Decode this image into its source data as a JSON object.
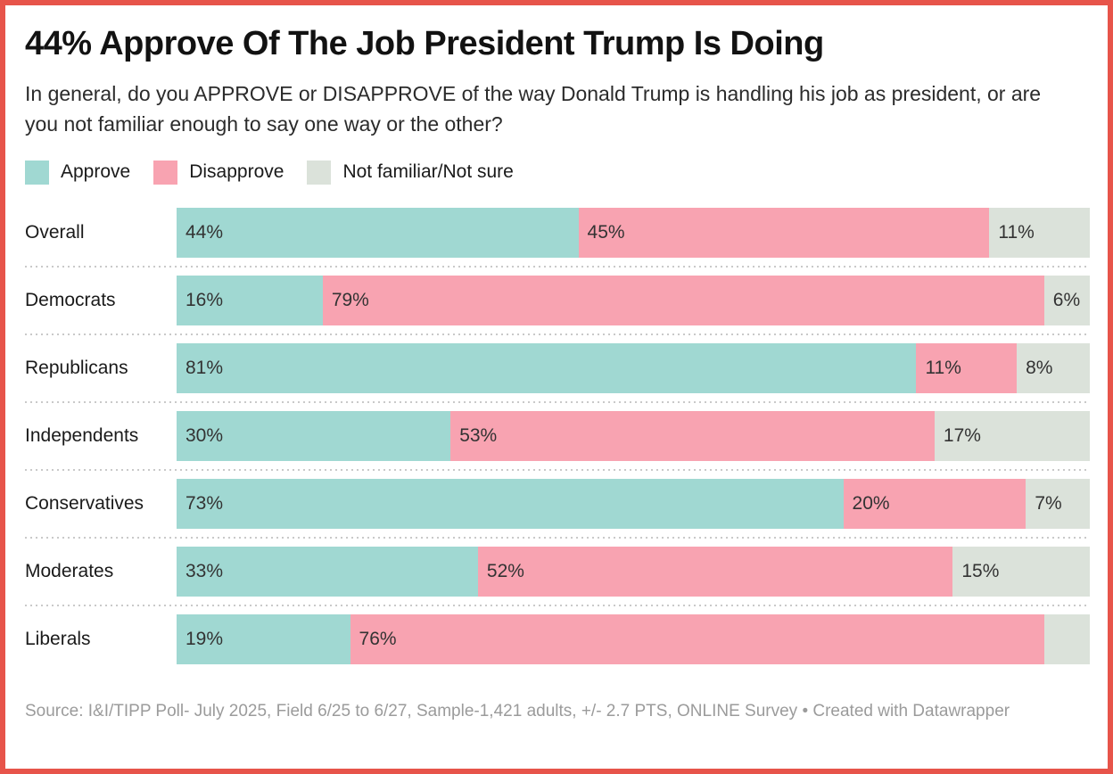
{
  "header": {
    "title": "44% Approve Of The Job President Trump Is Doing",
    "subtitle": "In general, do you APPROVE or DISAPPROVE of the way Donald Trump is handling his job as president, or are you not familiar enough to say one way or the other?"
  },
  "footer": {
    "text": "Source: I&I/TIPP Poll- July 2025, Field 6/25 to 6/27, Sample-1,421 adults, +/- 2.7 PTS, ONLINE Survey • Created with Datawrapper"
  },
  "colors": {
    "frame_border": "#e7544a",
    "approve": "#a0d8d2",
    "disapprove": "#f8a3b1",
    "not_sure": "#dbe2da",
    "divider": "#c9c9c9",
    "footer_text": "#9b9b9b",
    "value_label": "#333333"
  },
  "chart_data": {
    "type": "bar",
    "variant": "horizontal-stacked",
    "title": "44% Approve Of The Job President Trump Is Doing",
    "subtitle": "In general, do you APPROVE or DISAPPROVE of the way Donald Trump is handling his job as president, or are you not familiar enough to say one way or the other?",
    "legend_position": "top",
    "grid": false,
    "unit": "%",
    "xlim": [
      0,
      100
    ],
    "categories": [
      "Overall",
      "Democrats",
      "Republicans",
      "Independents",
      "Conservatives",
      "Moderates",
      "Liberals"
    ],
    "series": [
      {
        "name": "Approve",
        "color": "#a0d8d2",
        "values": [
          44,
          16,
          81,
          30,
          73,
          33,
          19
        ],
        "labels": [
          "44%",
          "16%",
          "81%",
          "30%",
          "73%",
          "33%",
          "19%"
        ]
      },
      {
        "name": "Disapprove",
        "color": "#f8a3b1",
        "values": [
          45,
          79,
          11,
          53,
          20,
          52,
          76
        ],
        "labels": [
          "45%",
          "79%",
          "11%",
          "53%",
          "20%",
          "52%",
          "76%"
        ]
      },
      {
        "name": "Not familiar/Not sure",
        "color": "#dbe2da",
        "values": [
          11,
          6,
          8,
          17,
          7,
          15,
          5
        ],
        "labels": [
          "11%",
          "6%",
          "8%",
          "17%",
          "7%",
          "15%",
          ""
        ]
      }
    ]
  }
}
